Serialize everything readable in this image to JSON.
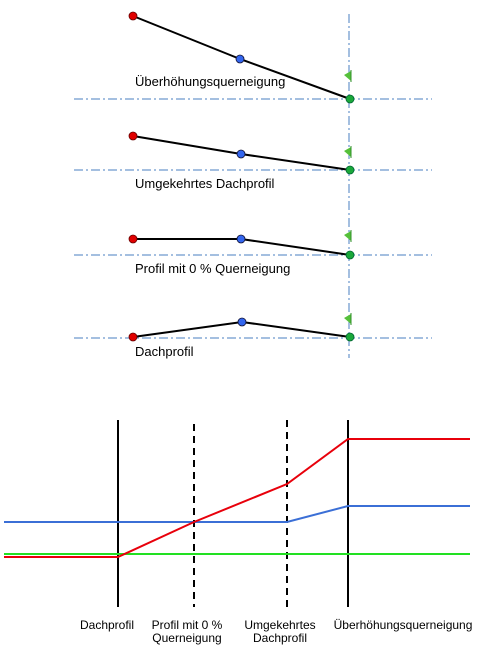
{
  "profiles": [
    {
      "label": "Überhöhungsquerneigung"
    },
    {
      "label": "Umgekehrtes Dachprofil"
    },
    {
      "label": "Profil mit 0 % Querneigung"
    },
    {
      "label": "Dachprofil"
    }
  ],
  "stations": [
    {
      "line1": "Dachprofil",
      "line2": ""
    },
    {
      "line1": "Profil mit 0 %",
      "line2": "Querneigung"
    },
    {
      "line1": "Umgekehrtes",
      "line2": "Dachprofil"
    },
    {
      "line1": "Überhöhungsquerneigung",
      "line2": ""
    }
  ],
  "colors": {
    "red": "#e8000b",
    "blue": "#3b6fd6",
    "green": "#22e022",
    "guide": "#4a7fc0",
    "flag": "#55c03a",
    "dot_red": "#e00000",
    "dot_blue": "#3366ee",
    "dot_green": "#1aa83a"
  }
}
